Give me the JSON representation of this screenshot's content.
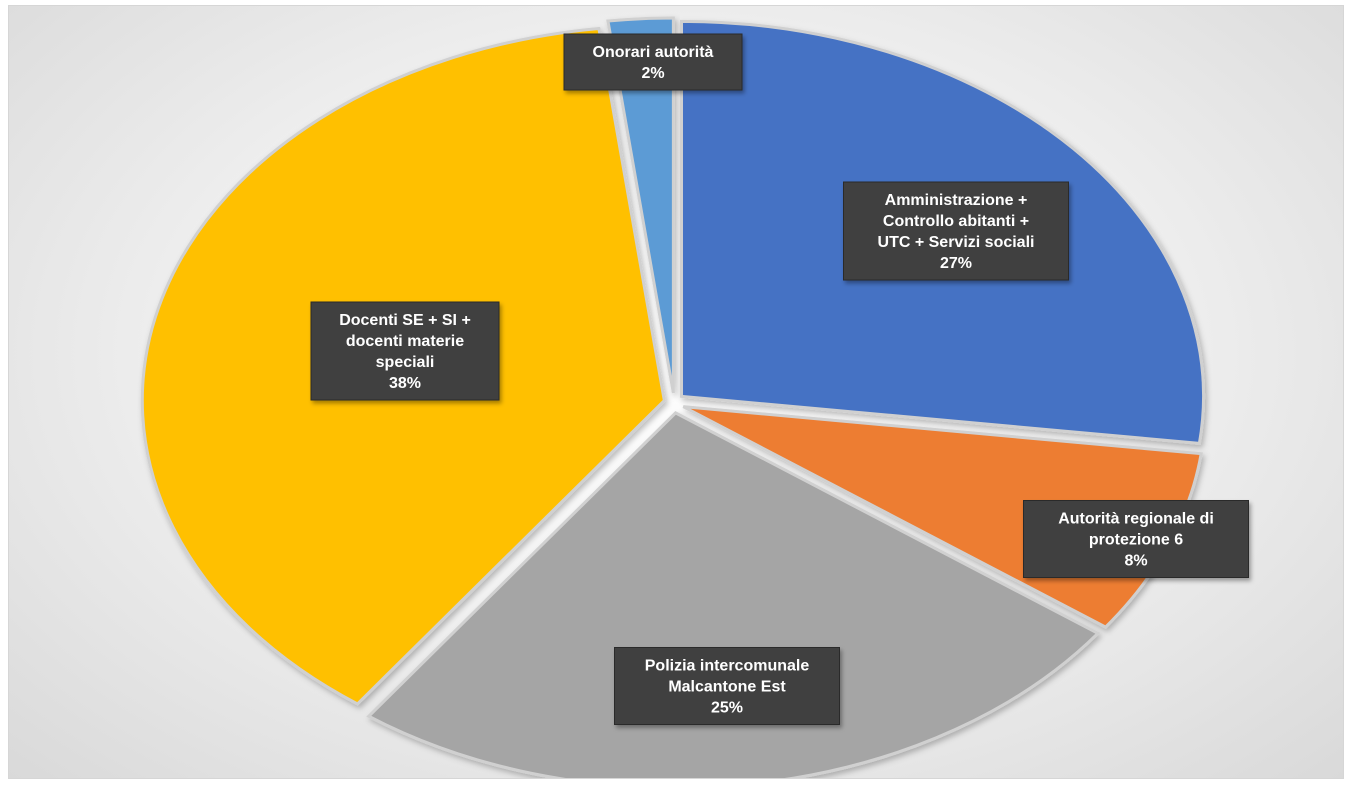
{
  "chart_data": {
    "type": "pie",
    "title": "",
    "series": [
      {
        "values": [
          27,
          8,
          25,
          38,
          2
        ],
        "categories": [
          "Amministrazione + Controllo abitanti + UTC + Servizi sociali",
          "Autorità regionale di protezione 6",
          "Polizia intercomunale Malcantone Est",
          "Docenti SE + SI + docenti materie speciali",
          "Onorari autorità"
        ]
      }
    ],
    "slices": [
      {
        "label_lines": [
          "Amministrazione +",
          "Controllo abitanti +",
          "UTC + Servizi sociali"
        ],
        "percent": "27%",
        "value": 27,
        "color": "#4472c4"
      },
      {
        "label_lines": [
          "Autorità regionale di",
          "protezione 6"
        ],
        "percent": "8%",
        "value": 8,
        "color": "#ed7d31"
      },
      {
        "label_lines": [
          "Polizia intercomunale",
          "Malcantone Est"
        ],
        "percent": "25%",
        "value": 25,
        "color": "#a5a5a5"
      },
      {
        "label_lines": [
          "Docenti SE + SI +",
          "docenti materie",
          "speciali"
        ],
        "percent": "38%",
        "value": 38,
        "color": "#ffc000"
      },
      {
        "label_lines": [
          "Onorari autorità"
        ],
        "percent": "2%",
        "value": 2,
        "color": "#5b9bd5"
      }
    ],
    "start_angle_deg": 0,
    "direction": "clockwise",
    "legend": "none",
    "data_labels": "category and percent, dark boxes"
  }
}
